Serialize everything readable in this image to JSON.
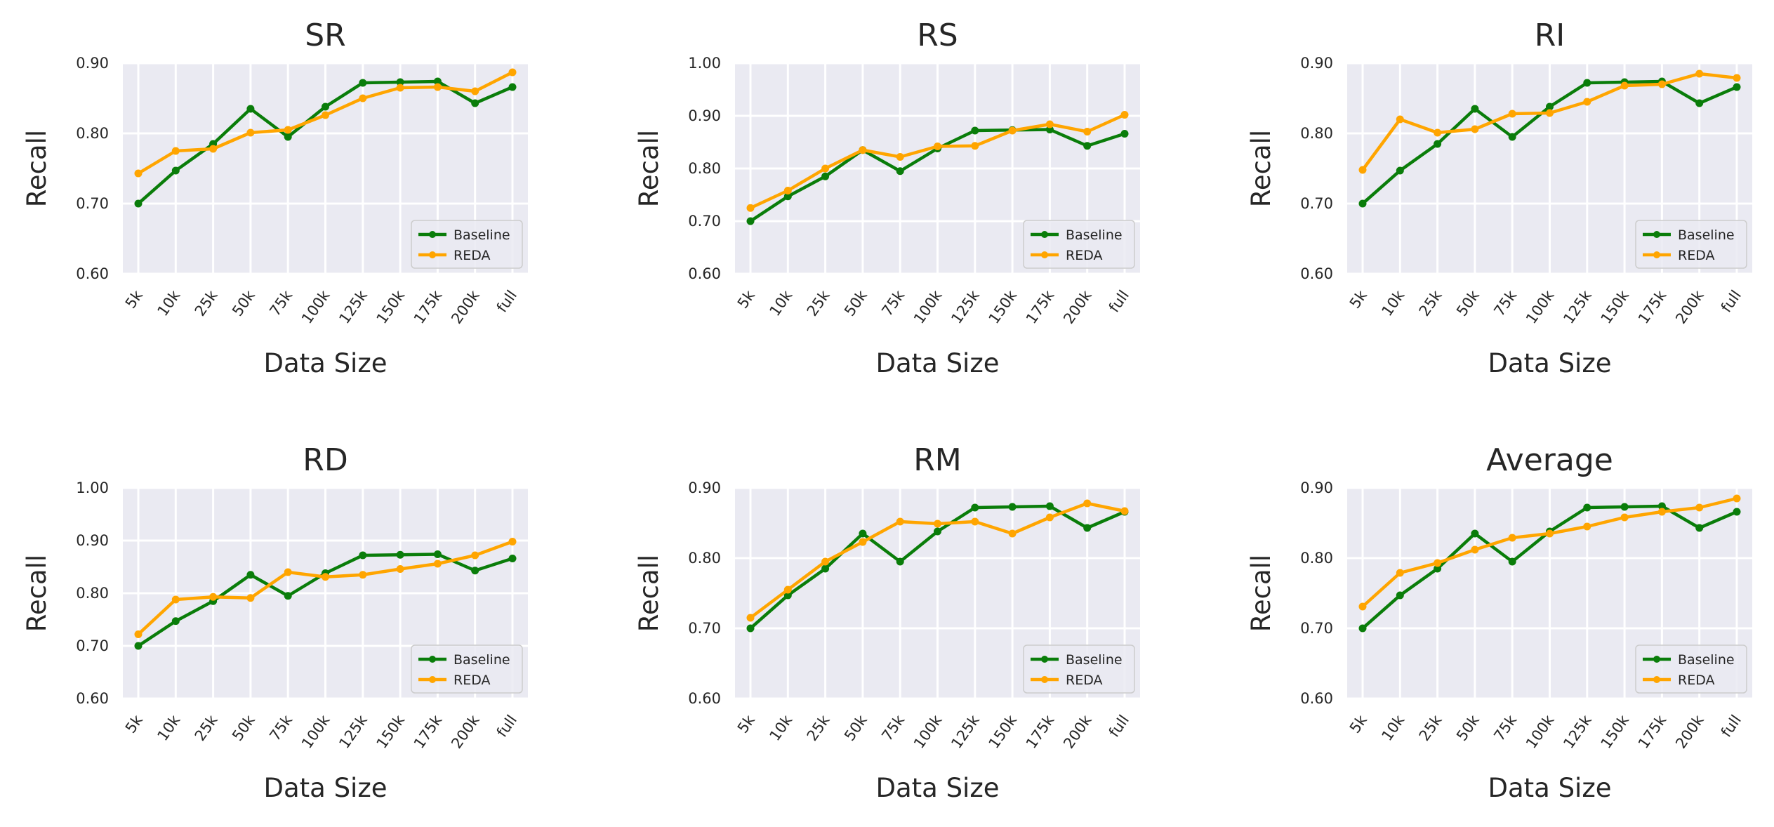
{
  "figure": {
    "xlabel": "Data Size",
    "ylabel": "Recall",
    "colors": {
      "Baseline": "#0a7d0a",
      "REDA": "#ffa500",
      "panel_bg": "#eaeaf2",
      "grid": "#ffffff"
    }
  },
  "chart_data": [
    {
      "type": "line",
      "title": "SR",
      "xlabel": "Data Size",
      "ylabel": "Recall",
      "categories": [
        "5k",
        "10k",
        "25k",
        "50k",
        "75k",
        "100k",
        "125k",
        "150k",
        "175k",
        "200k",
        "full"
      ],
      "ylim": [
        0.6,
        0.9
      ],
      "yticks": [
        "0.60",
        "0.70",
        "0.80",
        "0.90"
      ],
      "legend_position": "lower-right",
      "series": [
        {
          "name": "Baseline",
          "values": [
            0.7,
            0.747,
            0.785,
            0.835,
            0.795,
            0.838,
            0.872,
            0.873,
            0.874,
            0.843,
            0.866
          ]
        },
        {
          "name": "REDA",
          "values": [
            0.743,
            0.775,
            0.778,
            0.801,
            0.805,
            0.826,
            0.85,
            0.865,
            0.866,
            0.86,
            0.887
          ]
        }
      ]
    },
    {
      "type": "line",
      "title": "RS",
      "xlabel": "Data Size",
      "ylabel": "Recall",
      "categories": [
        "5k",
        "10k",
        "25k",
        "50k",
        "75k",
        "100k",
        "125k",
        "150k",
        "175k",
        "200k",
        "full"
      ],
      "ylim": [
        0.6,
        1.0
      ],
      "yticks": [
        "0.60",
        "0.70",
        "0.80",
        "0.90",
        "1.00"
      ],
      "legend_position": "lower-right",
      "series": [
        {
          "name": "Baseline",
          "values": [
            0.7,
            0.747,
            0.785,
            0.835,
            0.795,
            0.838,
            0.872,
            0.873,
            0.874,
            0.843,
            0.866
          ]
        },
        {
          "name": "REDA",
          "values": [
            0.725,
            0.758,
            0.8,
            0.835,
            0.822,
            0.842,
            0.843,
            0.872,
            0.884,
            0.87,
            0.902
          ]
        }
      ]
    },
    {
      "type": "line",
      "title": "RI",
      "xlabel": "Data Size",
      "ylabel": "Recall",
      "categories": [
        "5k",
        "10k",
        "25k",
        "50k",
        "75k",
        "100k",
        "125k",
        "150k",
        "175k",
        "200k",
        "full"
      ],
      "ylim": [
        0.6,
        0.9
      ],
      "yticks": [
        "0.60",
        "0.70",
        "0.80",
        "0.90"
      ],
      "legend_position": "lower-right",
      "series": [
        {
          "name": "Baseline",
          "values": [
            0.7,
            0.747,
            0.785,
            0.835,
            0.795,
            0.838,
            0.872,
            0.873,
            0.874,
            0.843,
            0.866
          ]
        },
        {
          "name": "REDA",
          "values": [
            0.748,
            0.82,
            0.801,
            0.806,
            0.828,
            0.829,
            0.845,
            0.868,
            0.87,
            0.885,
            0.879
          ]
        }
      ]
    },
    {
      "type": "line",
      "title": "RD",
      "xlabel": "Data Size",
      "ylabel": "Recall",
      "categories": [
        "5k",
        "10k",
        "25k",
        "50k",
        "75k",
        "100k",
        "125k",
        "150k",
        "175k",
        "200k",
        "full"
      ],
      "ylim": [
        0.6,
        1.0
      ],
      "yticks": [
        "0.60",
        "0.70",
        "0.80",
        "0.90",
        "1.00"
      ],
      "legend_position": "lower-right",
      "series": [
        {
          "name": "Baseline",
          "values": [
            0.7,
            0.747,
            0.785,
            0.835,
            0.795,
            0.838,
            0.872,
            0.873,
            0.874,
            0.843,
            0.866
          ]
        },
        {
          "name": "REDA",
          "values": [
            0.722,
            0.788,
            0.793,
            0.791,
            0.84,
            0.831,
            0.835,
            0.846,
            0.856,
            0.872,
            0.898
          ]
        }
      ]
    },
    {
      "type": "line",
      "title": "RM",
      "xlabel": "Data Size",
      "ylabel": "Recall",
      "categories": [
        "5k",
        "10k",
        "25k",
        "50k",
        "75k",
        "100k",
        "125k",
        "150k",
        "175k",
        "200k",
        "full"
      ],
      "ylim": [
        0.6,
        0.9
      ],
      "yticks": [
        "0.60",
        "0.70",
        "0.80",
        "0.90"
      ],
      "legend_position": "lower-right",
      "series": [
        {
          "name": "Baseline",
          "values": [
            0.7,
            0.747,
            0.785,
            0.835,
            0.795,
            0.838,
            0.872,
            0.873,
            0.874,
            0.843,
            0.866
          ]
        },
        {
          "name": "REDA",
          "values": [
            0.715,
            0.755,
            0.795,
            0.823,
            0.852,
            0.849,
            0.852,
            0.835,
            0.858,
            0.878,
            0.867
          ]
        }
      ]
    },
    {
      "type": "line",
      "title": "Average",
      "xlabel": "Data Size",
      "ylabel": "Recall",
      "categories": [
        "5k",
        "10k",
        "25k",
        "50k",
        "75k",
        "100k",
        "125k",
        "150k",
        "175k",
        "200k",
        "full"
      ],
      "ylim": [
        0.6,
        0.9
      ],
      "yticks": [
        "0.60",
        "0.70",
        "0.80",
        "0.90"
      ],
      "legend_position": "lower-right",
      "series": [
        {
          "name": "Baseline",
          "values": [
            0.7,
            0.747,
            0.785,
            0.835,
            0.795,
            0.838,
            0.872,
            0.873,
            0.874,
            0.843,
            0.866
          ]
        },
        {
          "name": "REDA",
          "values": [
            0.731,
            0.779,
            0.793,
            0.812,
            0.829,
            0.835,
            0.845,
            0.858,
            0.866,
            0.872,
            0.885
          ]
        }
      ]
    }
  ]
}
